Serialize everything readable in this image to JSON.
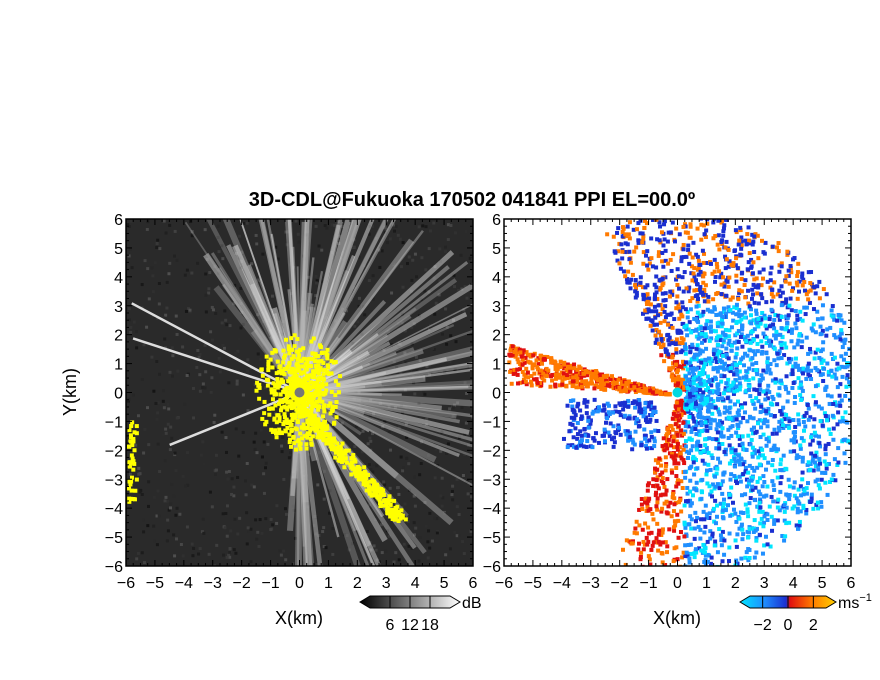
{
  "chart_data": {
    "title": "3D-CDL@Fukuoka 170502 041841 PPI EL=00.0º",
    "panels": [
      {
        "type": "heatmap",
        "quantity": "signal intensity",
        "xlabel": "X(km)",
        "ylabel": "Y(km)",
        "xlim": [
          -6,
          6
        ],
        "ylim": [
          -6,
          6
        ],
        "xticks": [
          "−6",
          "−5",
          "−4",
          "−3",
          "−2",
          "−1",
          "0",
          "1",
          "2",
          "3",
          "4",
          "5",
          "6"
        ],
        "yticks": [
          "6",
          "5",
          "4",
          "3",
          "2",
          "1",
          "0",
          "−1",
          "−2",
          "−3",
          "−4",
          "−5",
          "−6"
        ],
        "colorbar": {
          "unit": "dB",
          "ticks": [
            "6",
            "12",
            "18"
          ],
          "tick_values": [
            6,
            12,
            18
          ],
          "range": [
            0,
            24
          ],
          "colors": [
            "#000000",
            "#ffffff"
          ]
        },
        "overlay_color": "#ffff00",
        "radar_site": [
          0,
          0
        ]
      },
      {
        "type": "heatmap",
        "quantity": "radial velocity",
        "xlabel": "X(km)",
        "ylabel": "",
        "xlim": [
          -6,
          6
        ],
        "ylim": [
          -6,
          6
        ],
        "xticks": [
          "−6",
          "−5",
          "−4",
          "−3",
          "−2",
          "−1",
          "0",
          "1",
          "2",
          "3",
          "4",
          "5",
          "6"
        ],
        "yticks": [
          "6",
          "5",
          "4",
          "3",
          "2",
          "1",
          "0",
          "−1",
          "−2",
          "−3",
          "−4",
          "−5",
          "−6"
        ],
        "colorbar": {
          "unit": "ms",
          "unit_exponent": "−1",
          "ticks": [
            "−2",
            "0",
            "2"
          ],
          "tick_values": [
            -2,
            0,
            2
          ],
          "range": [
            -3,
            3
          ],
          "colors": [
            "#00e5ff",
            "#1f8fff",
            "#1a2fd0",
            "#e01010",
            "#ff7a00",
            "#ffd000"
          ]
        },
        "radar_site": [
          0,
          0
        ]
      }
    ]
  }
}
